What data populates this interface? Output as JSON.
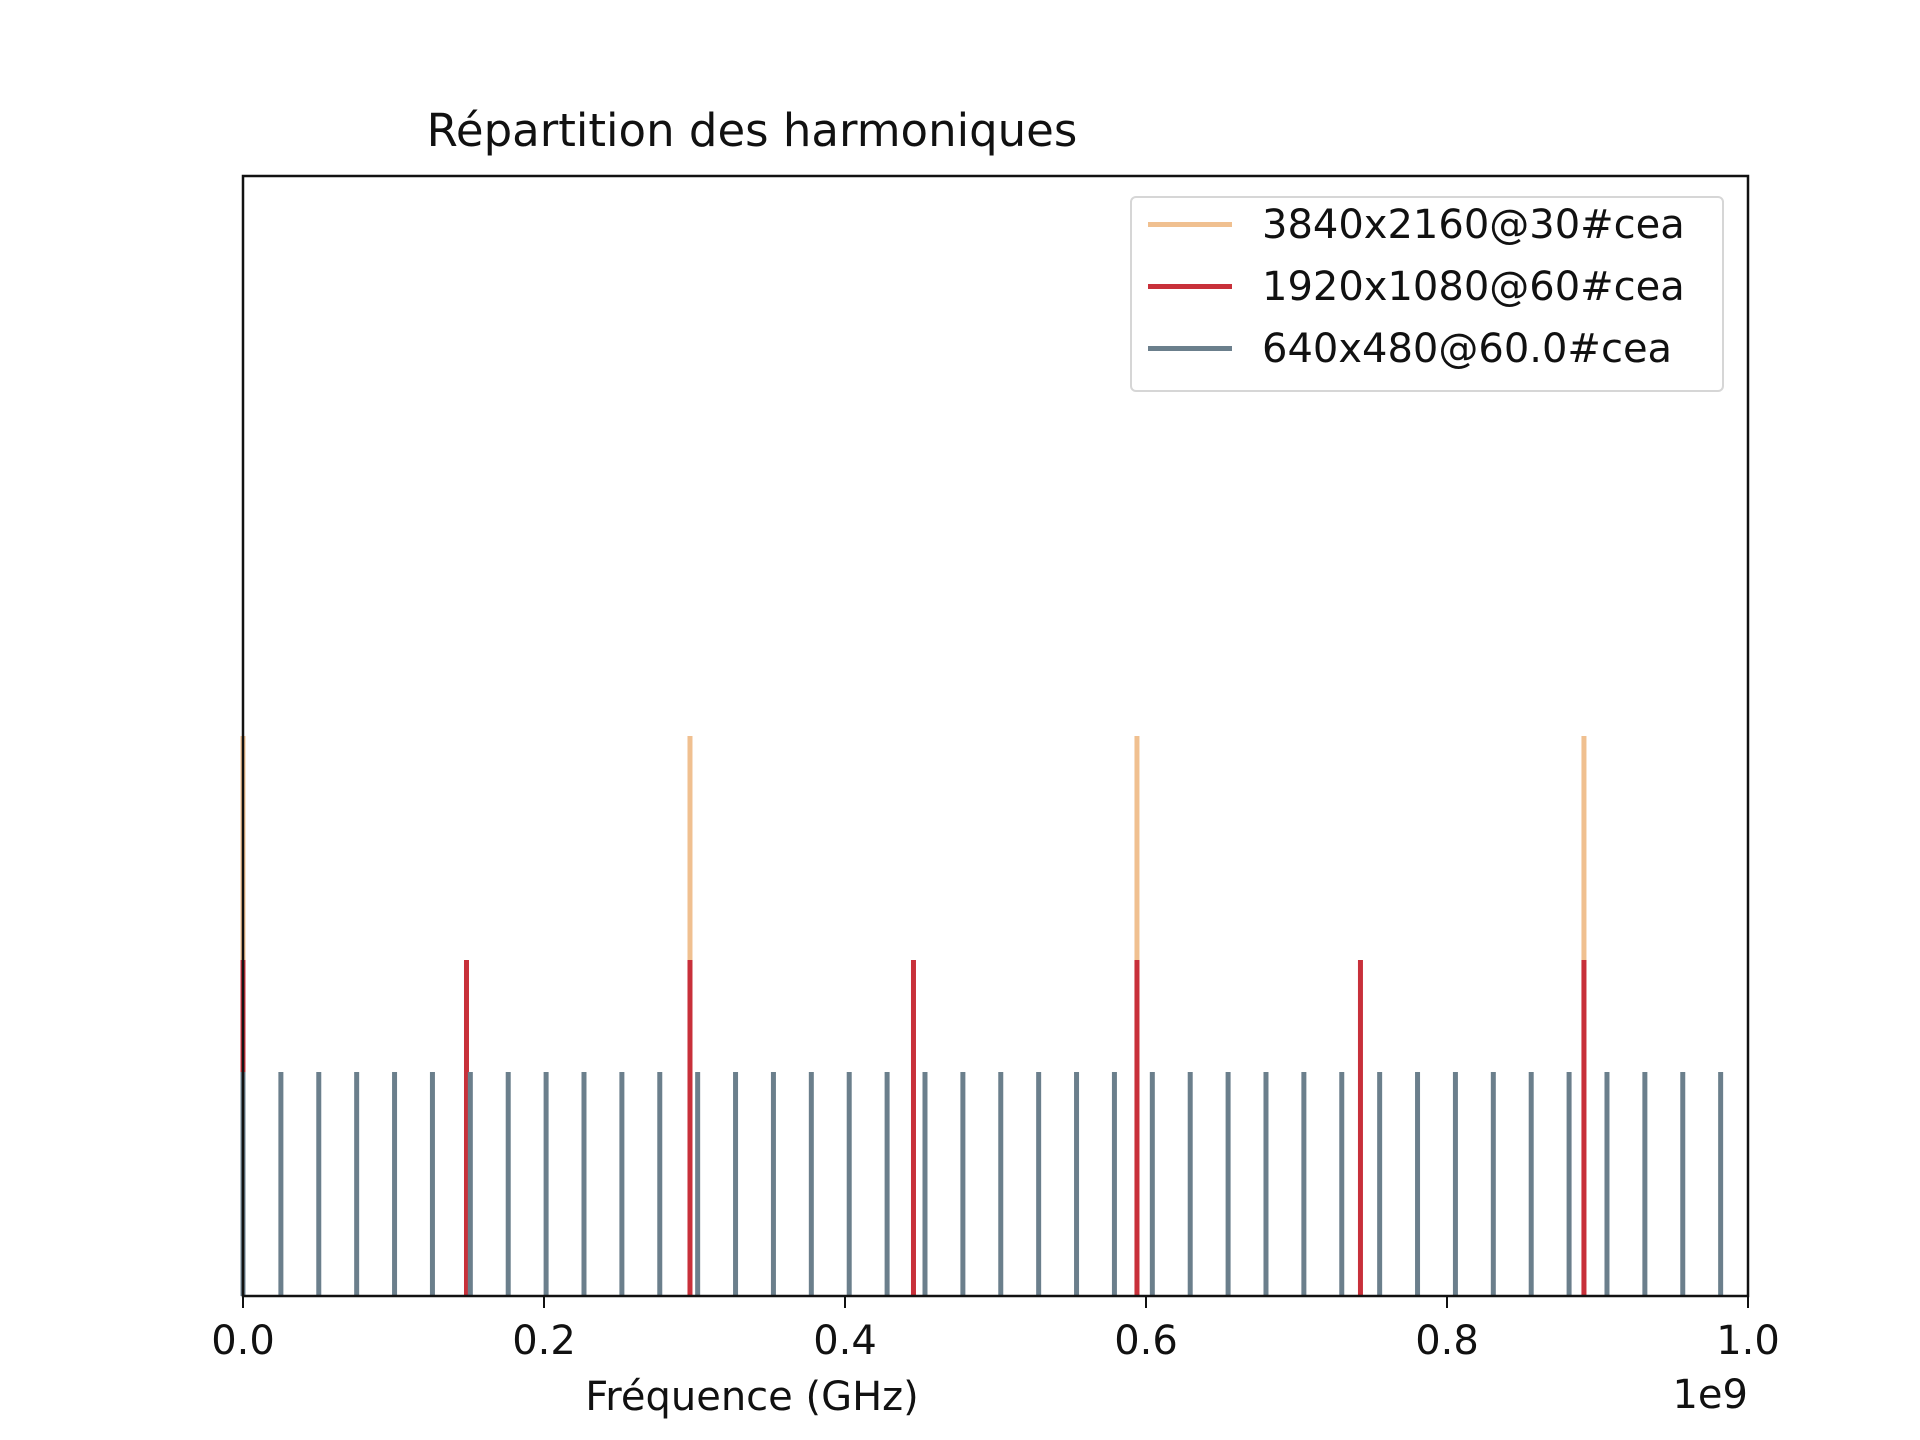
{
  "chart_data": {
    "type": "bar",
    "title": "Répartition des harmoniques",
    "xlabel": "Fréquence (GHz)",
    "ylabel": "",
    "x_offset_label": "1e9",
    "xlim": [
      0,
      1000000000
    ],
    "ylim": [
      0,
      1
    ],
    "x_ticks": [
      0,
      200000000,
      400000000,
      600000000,
      800000000,
      1000000000
    ],
    "x_tick_labels": [
      "0.0",
      "0.2",
      "0.4",
      "0.6",
      "0.8",
      "1.0"
    ],
    "y_ticks_visible": false,
    "grid": false,
    "legend_position": "top-right",
    "series": [
      {
        "name": "3840x2160@30#cea",
        "color": "#f0c090",
        "height": 0.5,
        "x": [
          0,
          297000000,
          594000000,
          891000000
        ]
      },
      {
        "name": "1920x1080@60#cea",
        "color": "#c8303a",
        "height": 0.3,
        "x": [
          0,
          148500000,
          297000000,
          445500000,
          594000000,
          742500000,
          891000000
        ]
      },
      {
        "name": "640x480@60.0#cea",
        "color": "#6b7f8c",
        "height": 0.2,
        "x": [
          0,
          25175000,
          50350000,
          75525000,
          100700000,
          125875000,
          151050000,
          176225000,
          201400000,
          226575000,
          251750000,
          276925000,
          302100000,
          327275000,
          352450000,
          377625000,
          402800000,
          427975000,
          453150000,
          478325000,
          503500000,
          528675000,
          553850000,
          579025000,
          604200000,
          629375000,
          654550000,
          679725000,
          704900000,
          730075000,
          755250000,
          780425000,
          805600000,
          830775000,
          855950000,
          881125000,
          906300000,
          931475000,
          956650000,
          981825000
        ]
      }
    ]
  }
}
